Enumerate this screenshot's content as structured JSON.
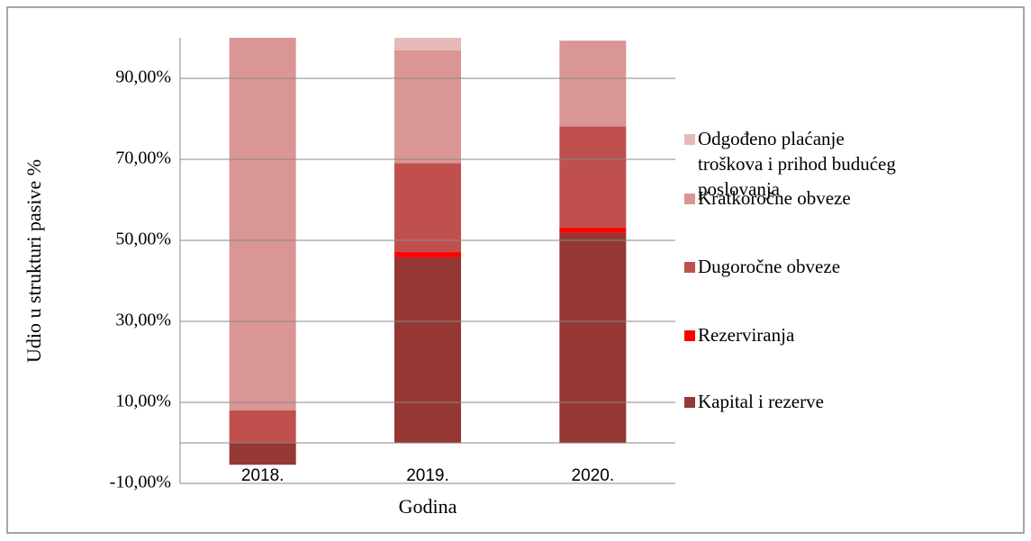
{
  "chart_data": {
    "type": "stacked-bar",
    "x_label": "Godina",
    "y_label": "Udio u strukturi pasive %",
    "categories": [
      "2018.",
      "2019.",
      "2020."
    ],
    "series": [
      {
        "name": "Kapital i rezerve",
        "color": "#953735",
        "values": [
          -5.4,
          45.8,
          51.8
        ]
      },
      {
        "name": "Rezerviranja",
        "color": "#ff0000",
        "values": [
          0,
          1.3,
          1.3
        ]
      },
      {
        "name": "Dugoročne obveze",
        "color": "#c0504d",
        "values": [
          8.0,
          21.9,
          25.0
        ]
      },
      {
        "name": "Kratkoročne obveze",
        "color": "#d99694",
        "values": [
          97.4,
          27.9,
          21.2
        ]
      },
      {
        "name": "Odgođeno plaćanje troškova i prihod budućeg poslovanja",
        "color": "#e6b9b8",
        "values": [
          0,
          3.1,
          0
        ]
      }
    ],
    "ylim": [
      -10,
      100
    ],
    "yticks": [
      {
        "value": -10,
        "label": "-10,00%"
      },
      {
        "value": 10,
        "label": "10,00%"
      },
      {
        "value": 30,
        "label": "30,00%"
      },
      {
        "value": 50,
        "label": "50,00%"
      },
      {
        "value": 70,
        "label": "70,00%"
      },
      {
        "value": 90,
        "label": "90,00%"
      }
    ],
    "grid": true
  }
}
